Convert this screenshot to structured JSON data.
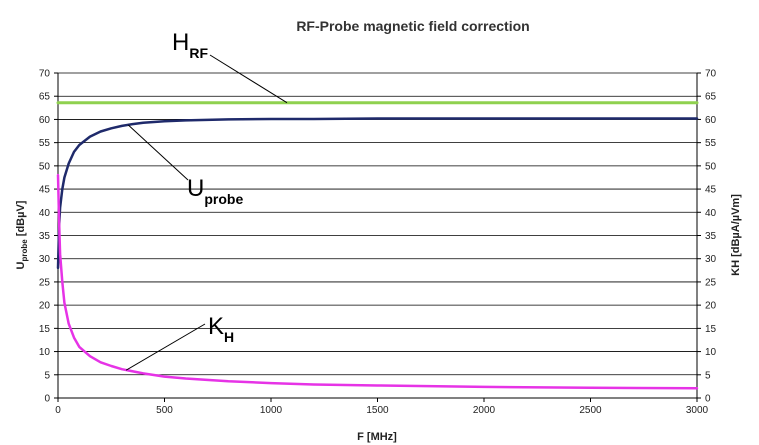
{
  "chart_data": {
    "type": "line",
    "title": "RF-Probe magnetic field correction",
    "xlabel": "F [MHz]",
    "ylabel_left": {
      "main": "U",
      "sub": "probe",
      "suffix": " [dBµV]"
    },
    "ylabel_right": "KH [dBµA/µVm]",
    "xlim": [
      0,
      3000
    ],
    "ylim": [
      0,
      70
    ],
    "x_ticks": [
      "0",
      "500",
      "1000",
      "1500",
      "2000",
      "2500",
      "3000"
    ],
    "y_ticks": [
      "0",
      "5",
      "10",
      "15",
      "20",
      "25",
      "30",
      "35",
      "40",
      "45",
      "50",
      "55",
      "60",
      "65",
      "70"
    ],
    "grid": true,
    "series": [
      {
        "key": "HRF",
        "color": "#8fd14f",
        "x": [
          0,
          3000
        ],
        "y": [
          63.6,
          63.6
        ]
      },
      {
        "key": "Uprobe",
        "color": "#1f2a6b",
        "x": [
          0,
          5,
          10,
          20,
          30,
          50,
          75,
          100,
          150,
          200,
          250,
          300,
          350,
          400,
          500,
          600,
          700,
          800,
          1000,
          1200,
          1500,
          2000,
          2500,
          3000
        ],
        "y": [
          28,
          37,
          41,
          45,
          47.5,
          50.5,
          53,
          54.5,
          56.3,
          57.4,
          58.1,
          58.6,
          59.0,
          59.3,
          59.6,
          59.8,
          59.9,
          60.0,
          60.1,
          60.1,
          60.2,
          60.2,
          60.2,
          60.2
        ]
      },
      {
        "key": "KH",
        "color": "#e633e6",
        "x": [
          0,
          5,
          10,
          20,
          30,
          50,
          75,
          100,
          150,
          200,
          250,
          300,
          400,
          500,
          600,
          800,
          1000,
          1200,
          1500,
          2000,
          2500,
          3000
        ],
        "y": [
          48,
          38,
          31,
          25,
          20.5,
          16,
          13,
          11,
          9,
          7.7,
          6.9,
          6.2,
          5.3,
          4.6,
          4.2,
          3.6,
          3.2,
          2.9,
          2.7,
          2.4,
          2.2,
          2.1
        ]
      }
    ],
    "annotations": [
      {
        "main": "H",
        "sub": "RF",
        "target_x": 1075,
        "target_y": 63.6
      },
      {
        "main": "U",
        "sub": "probe",
        "target_x": 330,
        "target_y": 58.8
      },
      {
        "main": "K",
        "sub": "H",
        "target_x": 320,
        "target_y": 6.0
      }
    ]
  }
}
